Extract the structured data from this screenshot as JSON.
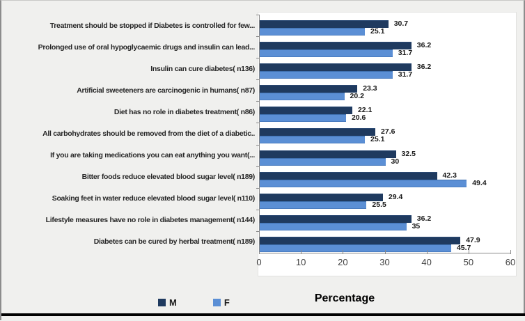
{
  "chart_data": {
    "type": "bar",
    "orientation": "horizontal",
    "title": "",
    "xlabel": "Percentage",
    "xlim": [
      0,
      60
    ],
    "xticks": [
      "0",
      "10",
      "20",
      "30",
      "40",
      "50",
      "60"
    ],
    "grid": false,
    "legend_position": "bottom",
    "categories": [
      "Treatment should be stopped if Diabetes is controlled  for few...",
      "Prolonged use of oral hypoglycaemic drugs and insulin can lead...",
      "Insulin can cure diabetes( n136)",
      "Artificial sweeteners are carcinogenic in humans( n87)",
      "Diet has no role in diabetes treatment( n86)",
      "All carbohydrates should be removed from the diet of a diabetic..",
      "If you are taking medications you can eat anything you want(...",
      "Bitter foods reduce elevated blood sugar level( n189)",
      "Soaking feet in water reduce elevated blood sugar level( n110)",
      "Lifestyle measures have no role in diabetes management( n144)",
      "Diabetes can be cured by herbal treatment( n189)"
    ],
    "series": [
      {
        "name": "M",
        "color": "#1f3a5f",
        "values": [
          30.7,
          36.2,
          36.2,
          23.3,
          22.1,
          27.6,
          32.5,
          42.3,
          29.4,
          36.2,
          47.9
        ],
        "labels": [
          "30.7",
          "36.2",
          "36.2",
          "23.3",
          "22.1",
          "27.6",
          "32.5",
          "42.3",
          "29.4",
          "36.2",
          "47.9"
        ]
      },
      {
        "name": "F",
        "color": "#5b8fd5",
        "values": [
          25.1,
          31.7,
          31.7,
          20.2,
          20.6,
          25.1,
          30,
          49.4,
          25.5,
          35,
          45.7
        ],
        "labels": [
          "25.1",
          "31.7",
          "31.7",
          "20.2",
          "20.6",
          "25.1",
          "30",
          "49.4",
          "25.5",
          "35",
          "45.7"
        ]
      }
    ],
    "axis_color": "#898989",
    "plot_background": "#ffffff",
    "figure_background": "#f0f0ee"
  }
}
